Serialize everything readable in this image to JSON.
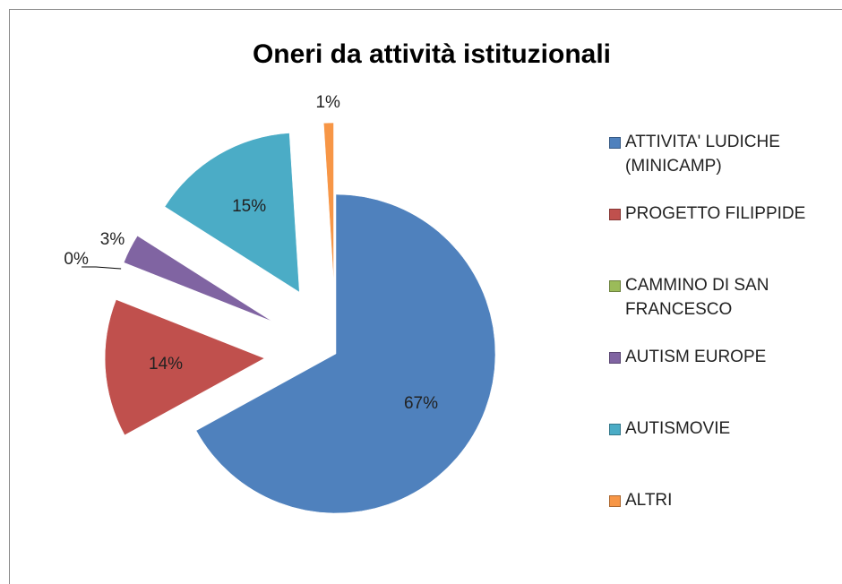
{
  "chart_data": {
    "type": "pie",
    "title": "Oneri da attività istituzionali",
    "categories": [
      "ATTIVITA' LUDICHE (MINICAMP)",
      "PROGETTO FILIPPIDE",
      "CAMMINO DI SAN FRANCESCO",
      "AUTISM EUROPE",
      "AUTISMOVIE",
      "ALTRI"
    ],
    "values": [
      67,
      14,
      0,
      3,
      15,
      1
    ],
    "value_labels": [
      "67%",
      "14%",
      "0%",
      "3%",
      "15%",
      "1%"
    ],
    "colors": [
      "#4f81bd",
      "#c0504d",
      "#9bbb59",
      "#8064a2",
      "#4bacc6",
      "#f79646"
    ],
    "legend": "right"
  }
}
